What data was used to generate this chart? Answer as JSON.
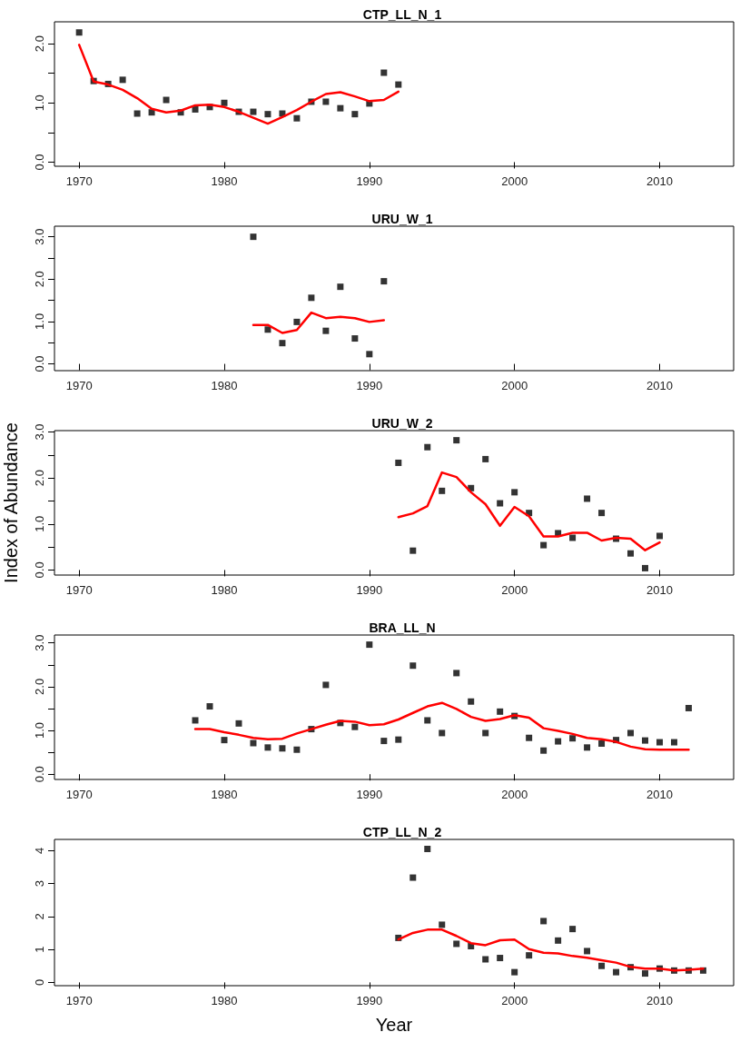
{
  "chart_data": [
    {
      "type": "scatter",
      "title": "CTP_LL_N_1",
      "x": [
        1970,
        1971,
        1972,
        1973,
        1974,
        1975,
        1976,
        1977,
        1978,
        1979,
        1980,
        1981,
        1982,
        1983,
        1984,
        1985,
        1986,
        1987,
        1988,
        1989,
        1990,
        1991,
        1992
      ],
      "xlim": [
        1968.3,
        2015.1
      ],
      "xticks": [
        1970,
        1980,
        1990,
        2000,
        2010
      ],
      "ylim": [
        -0.07,
        2.37
      ],
      "yticks": [
        {
          "value": 0,
          "label": "0.0"
        },
        {
          "value": 0.5,
          "label": null
        },
        {
          "value": 1,
          "label": "1.0"
        },
        {
          "value": 1.5,
          "label": null
        },
        {
          "value": 2,
          "label": "2.0"
        }
      ],
      "series": [
        {
          "marker": "square",
          "color": "#000000",
          "values": [
            2.19,
            1.37,
            1.32,
            1.39,
            0.82,
            0.84,
            1.05,
            0.84,
            0.89,
            0.93,
            1.0,
            0.85,
            0.85,
            0.81,
            0.82,
            0.74,
            1.02,
            1.02,
            0.91,
            0.81,
            0.99,
            1.51,
            1.31
          ]
        },
        {
          "type": "line",
          "marker": "none",
          "color": "#ff0000",
          "values": [
            1.98,
            1.36,
            1.31,
            1.22,
            1.08,
            0.9,
            0.84,
            0.87,
            0.96,
            0.97,
            0.93,
            0.85,
            0.75,
            0.65,
            0.76,
            0.88,
            1.02,
            1.15,
            1.18,
            1.11,
            1.03,
            1.05,
            1.19
          ]
        }
      ]
    },
    {
      "type": "scatter",
      "title": "URU_W_1",
      "x": [
        1982,
        1983,
        1984,
        1985,
        1986,
        1987,
        1988,
        1989,
        1990,
        1991
      ],
      "xlim": [
        1968.3,
        2015.1
      ],
      "xticks": [
        1970,
        1980,
        1990,
        2000,
        2010
      ],
      "ylim": [
        -0.16,
        3.25
      ],
      "yticks": [
        {
          "value": 0,
          "label": "0.0"
        },
        {
          "value": 0.5,
          "label": null
        },
        {
          "value": 1,
          "label": "1.0"
        },
        {
          "value": 1.5,
          "label": null
        },
        {
          "value": 2,
          "label": "2.0"
        },
        {
          "value": 2.5,
          "label": null
        },
        {
          "value": 3,
          "label": "3.0"
        }
      ],
      "series": [
        {
          "marker": "square",
          "color": "#000000",
          "values": [
            3.0,
            0.81,
            0.49,
            0.99,
            1.56,
            0.78,
            1.82,
            0.6,
            0.23,
            1.95
          ]
        },
        {
          "type": "line",
          "marker": "none",
          "color": "#ff0000",
          "values": [
            0.92,
            0.92,
            0.73,
            0.8,
            1.21,
            1.08,
            1.11,
            1.08,
            0.99,
            1.03
          ]
        }
      ]
    },
    {
      "type": "scatter",
      "title": "URU_W_2",
      "ylabel": "Index of Abundance",
      "x": [
        1992,
        1993,
        1994,
        1995,
        1996,
        1997,
        1998,
        1999,
        2000,
        2001,
        2002,
        2003,
        2004,
        2005,
        2006,
        2007,
        2008,
        2009,
        2010
      ],
      "xlim": [
        1968.3,
        2015.1
      ],
      "xticks": [
        1970,
        1980,
        1990,
        2000,
        2010
      ],
      "ylim": [
        -0.11,
        3.03
      ],
      "yticks": [
        {
          "value": 0,
          "label": "0.0"
        },
        {
          "value": 0.5,
          "label": null
        },
        {
          "value": 1,
          "label": "1.0"
        },
        {
          "value": 1.5,
          "label": null
        },
        {
          "value": 2,
          "label": "2.0"
        },
        {
          "value": 2.5,
          "label": null
        },
        {
          "value": 3,
          "label": "3.0"
        }
      ],
      "series": [
        {
          "marker": "square",
          "color": "#000000",
          "values": [
            2.33,
            0.42,
            2.67,
            1.72,
            2.82,
            1.78,
            2.41,
            1.45,
            1.69,
            1.24,
            0.54,
            0.8,
            0.7,
            1.55,
            1.24,
            0.68,
            0.36,
            0.04,
            0.74
          ]
        },
        {
          "type": "line",
          "marker": "none",
          "color": "#ff0000",
          "values": [
            1.15,
            1.23,
            1.39,
            2.12,
            2.02,
            1.69,
            1.43,
            0.96,
            1.37,
            1.17,
            0.73,
            0.73,
            0.81,
            0.81,
            0.64,
            0.7,
            0.68,
            0.43,
            0.6
          ]
        }
      ]
    },
    {
      "type": "scatter",
      "title": "BRA_LL_N",
      "x": [
        1978,
        1979,
        1980,
        1981,
        1982,
        1983,
        1984,
        1985,
        1986,
        1987,
        1988,
        1989,
        1990,
        1991,
        1992,
        1993,
        1994,
        1995,
        1996,
        1997,
        1998,
        1999,
        2000,
        2001,
        2002,
        2003,
        2004,
        2005,
        2006,
        2007,
        2008,
        2009,
        2010,
        2011,
        2012
      ],
      "xlim": [
        1968.3,
        2015.1
      ],
      "xticks": [
        1970,
        1980,
        1990,
        2000,
        2010
      ],
      "ylim": [
        -0.12,
        3.18
      ],
      "yticks": [
        {
          "value": 0,
          "label": "0.0"
        },
        {
          "value": 0.5,
          "label": null
        },
        {
          "value": 1,
          "label": "1.0"
        },
        {
          "value": 1.5,
          "label": null
        },
        {
          "value": 2,
          "label": "2.0"
        },
        {
          "value": 2.5,
          "label": null
        },
        {
          "value": 3,
          "label": "3.0"
        }
      ],
      "series": [
        {
          "marker": "square",
          "color": "#000000",
          "values": [
            1.23,
            1.55,
            0.78,
            1.16,
            0.71,
            0.61,
            0.59,
            0.56,
            1.03,
            2.04,
            1.17,
            1.08,
            2.96,
            0.76,
            0.79,
            2.48,
            1.23,
            0.94,
            2.31,
            1.66,
            0.94,
            1.43,
            1.33,
            0.83,
            0.54,
            0.75,
            0.82,
            0.61,
            0.7,
            0.78,
            0.94,
            0.77,
            0.73,
            0.73,
            1.51
          ]
        },
        {
          "type": "line",
          "marker": "none",
          "color": "#ff0000",
          "values": [
            1.03,
            1.03,
            0.96,
            0.9,
            0.83,
            0.8,
            0.81,
            0.93,
            1.03,
            1.13,
            1.22,
            1.2,
            1.12,
            1.14,
            1.25,
            1.4,
            1.55,
            1.63,
            1.49,
            1.31,
            1.22,
            1.26,
            1.35,
            1.29,
            1.05,
            0.99,
            0.92,
            0.83,
            0.8,
            0.74,
            0.63,
            0.57,
            0.56,
            0.56,
            0.56
          ]
        }
      ]
    },
    {
      "type": "scatter",
      "title": "CTP_LL_N_2",
      "xlabel": "Year",
      "x": [
        1992,
        1993,
        1994,
        1995,
        1996,
        1997,
        1998,
        1999,
        2000,
        2001,
        2002,
        2003,
        2004,
        2005,
        2006,
        2007,
        2008,
        2009,
        2010,
        2011,
        2012,
        2013
      ],
      "xlim": [
        1968.3,
        2015.1
      ],
      "xticks": [
        1970,
        1980,
        1990,
        2000,
        2010
      ],
      "ylim": [
        -0.1,
        4.34
      ],
      "yticks": [
        0,
        1,
        2,
        3,
        4
      ],
      "series": [
        {
          "marker": "square",
          "color": "#000000",
          "values": [
            1.35,
            3.18,
            4.05,
            1.75,
            1.17,
            1.1,
            0.7,
            0.74,
            0.31,
            0.82,
            1.86,
            1.27,
            1.62,
            0.95,
            0.5,
            0.31,
            0.46,
            0.27,
            0.42,
            0.36,
            0.36,
            0.36
          ]
        },
        {
          "type": "line",
          "marker": "none",
          "color": "#ff0000",
          "values": [
            1.3,
            1.5,
            1.6,
            1.6,
            1.41,
            1.19,
            1.13,
            1.28,
            1.3,
            1.01,
            0.9,
            0.88,
            0.8,
            0.75,
            0.67,
            0.6,
            0.47,
            0.42,
            0.42,
            0.36,
            0.38,
            0.42
          ]
        }
      ]
    }
  ]
}
